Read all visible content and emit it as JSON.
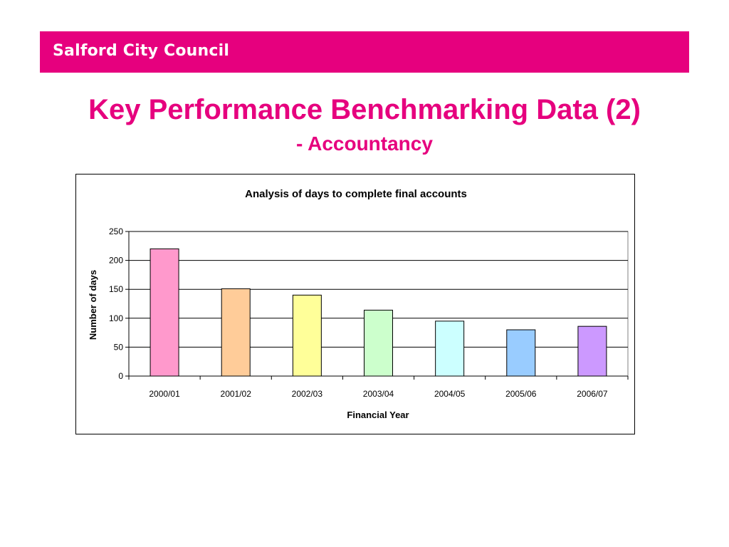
{
  "header": {
    "brand": "Salford City Council",
    "bar_color": "#e6007e"
  },
  "slide": {
    "title": "Key Performance Benchmarking Data (2)",
    "subtitle": "- Accountancy",
    "title_color": "#e6007e"
  },
  "chart_data": {
    "type": "bar",
    "title": "Analysis of days to complete final accounts",
    "xlabel": "Financial Year",
    "ylabel": "Number of days",
    "categories": [
      "2000/01",
      "2001/02",
      "2002/03",
      "2003/04",
      "2004/05",
      "2005/06",
      "2006/07"
    ],
    "values": [
      220,
      151,
      140,
      114,
      95,
      80,
      86
    ],
    "bar_colors": [
      "#ff99cc",
      "#ffcc99",
      "#ffff99",
      "#ccffcc",
      "#ccffff",
      "#99ccff",
      "#cc99ff"
    ],
    "ylim": [
      0,
      250
    ],
    "yticks": [
      0,
      50,
      100,
      150,
      200,
      250
    ],
    "grid": true,
    "legend": "none"
  }
}
